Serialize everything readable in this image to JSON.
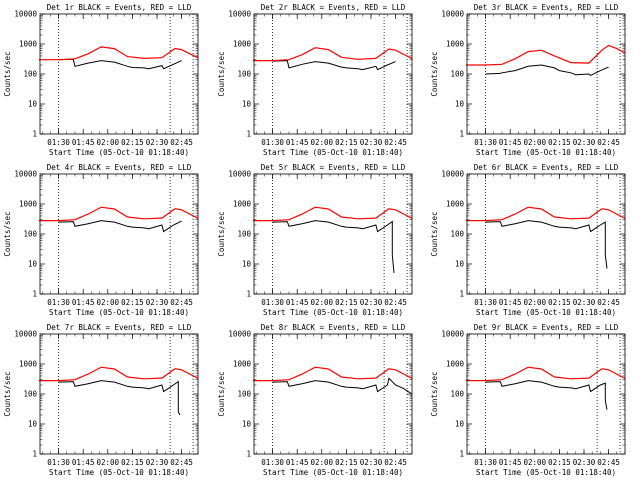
{
  "chart_data": [
    {
      "type": "line",
      "title": "Det 1r BLACK = Events, RED = LLD",
      "xlabel": "Start Time (05-Oct-10 01:18:40)",
      "ylabel": "Counts/sec",
      "log_y": true,
      "ylim": [
        1,
        10000
      ],
      "xlim": [
        "01:18:40",
        "02:55:00"
      ],
      "x_tick_labels": [
        "01:30",
        "01:45",
        "02:00",
        "02:15",
        "02:30",
        "02:45"
      ],
      "y_tick_labels": [
        "1",
        "10",
        "100",
        "1000",
        "10000"
      ],
      "vlines": [
        "01:30",
        "02:38",
        "02:52"
      ],
      "series": [
        {
          "color": "#000000",
          "x": [
            "01:30",
            "01:39",
            "01:40",
            "01:48",
            "01:56",
            "02:04",
            "02:12",
            "02:15",
            "02:22",
            "02:25",
            "02:33",
            "02:34",
            "02:40",
            "02:45"
          ],
          "y": [
            300,
            310,
            180,
            230,
            280,
            250,
            180,
            165,
            160,
            150,
            190,
            150,
            210,
            280
          ]
        },
        {
          "color": "#ff0000",
          "x": [
            "01:18",
            "01:30",
            "01:40",
            "01:48",
            "01:56",
            "02:04",
            "02:12",
            "02:22",
            "02:33",
            "02:41",
            "02:45",
            "02:50",
            "02:55"
          ],
          "y": [
            300,
            300,
            320,
            470,
            800,
            700,
            380,
            330,
            350,
            710,
            650,
            470,
            350
          ]
        }
      ]
    },
    {
      "type": "line",
      "title": "Det 2r BLACK = Events, RED = LLD",
      "xlabel": "Start Time (05-Oct-10 01:18:40)",
      "ylabel": "Counts/sec",
      "log_y": true,
      "ylim": [
        1,
        10000
      ],
      "xlim": [
        "01:18:40",
        "02:55:00"
      ],
      "x_tick_labels": [
        "01:30",
        "01:45",
        "02:00",
        "02:15",
        "02:30",
        "02:45"
      ],
      "y_tick_labels": [
        "1",
        "10",
        "100",
        "1000",
        "10000"
      ],
      "vlines": [
        "01:30",
        "02:38",
        "02:52"
      ],
      "series": [
        {
          "color": "#000000",
          "x": [
            "01:30",
            "01:39",
            "01:40",
            "01:48",
            "01:56",
            "02:04",
            "02:12",
            "02:15",
            "02:22",
            "02:25",
            "02:33",
            "02:34",
            "02:40",
            "02:45"
          ],
          "y": [
            270,
            280,
            160,
            210,
            260,
            230,
            170,
            160,
            150,
            140,
            180,
            140,
            200,
            260
          ]
        },
        {
          "color": "#ff0000",
          "x": [
            "01:18",
            "01:30",
            "01:40",
            "01:48",
            "01:56",
            "02:04",
            "02:12",
            "02:22",
            "02:33",
            "02:41",
            "02:45",
            "02:50",
            "02:55"
          ],
          "y": [
            280,
            280,
            300,
            440,
            750,
            650,
            360,
            310,
            330,
            680,
            620,
            450,
            330
          ]
        }
      ]
    },
    {
      "type": "line",
      "title": "Det 3r BLACK = Events, RED = LLD",
      "xlabel": "Start Time (05-Oct-10 01:18:40)",
      "ylabel": "Counts/sec",
      "log_y": true,
      "ylim": [
        1,
        10000
      ],
      "xlim": [
        "01:18:40",
        "02:55:00"
      ],
      "x_tick_labels": [
        "01:30",
        "01:45",
        "02:00",
        "02:15",
        "02:30",
        "02:45"
      ],
      "y_tick_labels": [
        "1",
        "10",
        "100",
        "1000",
        "10000"
      ],
      "vlines": [
        "01:30",
        "02:38",
        "02:52"
      ],
      "series": [
        {
          "color": "#000000",
          "x": [
            "01:30",
            "01:39",
            "01:40",
            "01:48",
            "01:56",
            "02:04",
            "02:12",
            "02:15",
            "02:22",
            "02:25",
            "02:33",
            "02:34",
            "02:40",
            "02:45"
          ],
          "y": [
            100,
            105,
            110,
            130,
            180,
            200,
            160,
            130,
            110,
            95,
            100,
            90,
            130,
            170
          ]
        },
        {
          "color": "#ff0000",
          "x": [
            "01:18",
            "01:30",
            "01:40",
            "01:48",
            "01:56",
            "02:04",
            "02:12",
            "02:22",
            "02:33",
            "02:41",
            "02:45",
            "02:50",
            "02:55"
          ],
          "y": [
            200,
            200,
            210,
            320,
            560,
            620,
            400,
            240,
            230,
            620,
            900,
            700,
            500
          ]
        }
      ]
    },
    {
      "type": "line",
      "title": "Det 4r BLACK = Events, RED = LLD",
      "xlabel": "Start Time (05-Oct-10 01:18:40)",
      "ylabel": "Counts/sec",
      "log_y": true,
      "ylim": [
        1,
        10000
      ],
      "xlim": [
        "01:18:40",
        "02:55:00"
      ],
      "x_tick_labels": [
        "01:30",
        "01:45",
        "02:00",
        "02:15",
        "02:30",
        "02:45"
      ],
      "y_tick_labels": [
        "1",
        "10",
        "100",
        "1000",
        "10000"
      ],
      "vlines": [
        "01:30",
        "02:38",
        "02:52"
      ],
      "series": [
        {
          "color": "#000000",
          "x": [
            "01:30",
            "01:39",
            "01:40",
            "01:48",
            "01:56",
            "02:04",
            "02:12",
            "02:15",
            "02:22",
            "02:25",
            "02:33",
            "02:34",
            "02:40",
            "02:45"
          ],
          "y": [
            250,
            260,
            180,
            220,
            280,
            250,
            180,
            170,
            160,
            150,
            200,
            120,
            200,
            270
          ]
        },
        {
          "color": "#ff0000",
          "x": [
            "01:18",
            "01:30",
            "01:40",
            "01:48",
            "01:56",
            "02:04",
            "02:12",
            "02:22",
            "02:33",
            "02:41",
            "02:45",
            "02:50",
            "02:55"
          ],
          "y": [
            280,
            280,
            300,
            460,
            780,
            680,
            370,
            320,
            340,
            690,
            640,
            460,
            330
          ]
        }
      ]
    },
    {
      "type": "line",
      "title": "Det 5r BLACK = Events, RED = LLD",
      "xlabel": "Start Time (05-Oct-10 01:18:40)",
      "ylabel": "Counts/sec",
      "log_y": true,
      "ylim": [
        1,
        10000
      ],
      "xlim": [
        "01:18:40",
        "02:55:00"
      ],
      "x_tick_labels": [
        "01:30",
        "01:45",
        "02:00",
        "02:15",
        "02:30",
        "02:45"
      ],
      "y_tick_labels": [
        "1",
        "10",
        "100",
        "1000",
        "10000"
      ],
      "vlines": [
        "01:30",
        "02:38",
        "02:52"
      ],
      "series": [
        {
          "color": "#000000",
          "x": [
            "01:30",
            "01:39",
            "01:40",
            "01:48",
            "01:56",
            "02:04",
            "02:12",
            "02:15",
            "02:22",
            "02:25",
            "02:33",
            "02:34",
            "02:40",
            "02:43",
            "02:43",
            "02:44"
          ],
          "y": [
            250,
            260,
            180,
            220,
            280,
            250,
            180,
            170,
            160,
            150,
            200,
            120,
            200,
            260,
            20,
            5
          ]
        },
        {
          "color": "#ff0000",
          "x": [
            "01:18",
            "01:30",
            "01:40",
            "01:48",
            "01:56",
            "02:04",
            "02:12",
            "02:22",
            "02:33",
            "02:41",
            "02:45",
            "02:50",
            "02:55"
          ],
          "y": [
            280,
            280,
            300,
            460,
            780,
            680,
            370,
            320,
            340,
            690,
            640,
            460,
            330
          ]
        }
      ]
    },
    {
      "type": "line",
      "title": "Det 6r BLACK = Events, RED = LLD",
      "xlabel": "Start Time (05-Oct-10 01:18:40)",
      "ylabel": "Counts/sec",
      "log_y": true,
      "ylim": [
        1,
        10000
      ],
      "xlim": [
        "01:18:40",
        "02:55:00"
      ],
      "x_tick_labels": [
        "01:30",
        "01:45",
        "02:00",
        "02:15",
        "02:30",
        "02:45"
      ],
      "y_tick_labels": [
        "1",
        "10",
        "100",
        "1000",
        "10000"
      ],
      "vlines": [
        "01:30",
        "02:38",
        "02:52"
      ],
      "series": [
        {
          "color": "#000000",
          "x": [
            "01:30",
            "01:39",
            "01:40",
            "01:48",
            "01:56",
            "02:04",
            "02:12",
            "02:15",
            "02:22",
            "02:25",
            "02:33",
            "02:34",
            "02:40",
            "02:43",
            "02:43",
            "02:44"
          ],
          "y": [
            250,
            260,
            180,
            220,
            280,
            250,
            180,
            170,
            160,
            150,
            200,
            120,
            200,
            250,
            20,
            7
          ]
        },
        {
          "color": "#ff0000",
          "x": [
            "01:18",
            "01:30",
            "01:40",
            "01:48",
            "01:56",
            "02:04",
            "02:12",
            "02:22",
            "02:33",
            "02:41",
            "02:45",
            "02:50",
            "02:55"
          ],
          "y": [
            280,
            280,
            300,
            460,
            780,
            680,
            370,
            320,
            340,
            690,
            640,
            460,
            330
          ]
        }
      ]
    },
    {
      "type": "line",
      "title": "Det 7r BLACK = Events, RED = LLD",
      "xlabel": "Start Time (05-Oct-10 01:18:40)",
      "ylabel": "Counts/sec",
      "log_y": true,
      "ylim": [
        1,
        10000
      ],
      "xlim": [
        "01:18:40",
        "02:55:00"
      ],
      "x_tick_labels": [
        "01:30",
        "01:45",
        "02:00",
        "02:15",
        "02:30",
        "02:45"
      ],
      "y_tick_labels": [
        "1",
        "10",
        "100",
        "1000",
        "10000"
      ],
      "vlines": [
        "01:30",
        "02:38",
        "02:52"
      ],
      "series": [
        {
          "color": "#000000",
          "x": [
            "01:30",
            "01:39",
            "01:40",
            "01:48",
            "01:56",
            "02:04",
            "02:12",
            "02:15",
            "02:22",
            "02:25",
            "02:33",
            "02:34",
            "02:40",
            "02:43",
            "02:43",
            "02:44"
          ],
          "y": [
            250,
            260,
            180,
            220,
            280,
            250,
            180,
            170,
            160,
            150,
            200,
            120,
            200,
            260,
            25,
            20
          ]
        },
        {
          "color": "#ff0000",
          "x": [
            "01:18",
            "01:30",
            "01:40",
            "01:48",
            "01:56",
            "02:04",
            "02:12",
            "02:22",
            "02:33",
            "02:41",
            "02:45",
            "02:50",
            "02:55"
          ],
          "y": [
            280,
            280,
            300,
            460,
            780,
            680,
            370,
            320,
            340,
            690,
            640,
            460,
            330
          ]
        }
      ]
    },
    {
      "type": "line",
      "title": "Det 8r BLACK = Events, RED = LLD",
      "xlabel": "Start Time (05-Oct-10 01:18:40)",
      "ylabel": "Counts/sec",
      "log_y": true,
      "ylim": [
        1,
        10000
      ],
      "xlim": [
        "01:18:40",
        "02:55:00"
      ],
      "x_tick_labels": [
        "01:30",
        "01:45",
        "02:00",
        "02:15",
        "02:30",
        "02:45"
      ],
      "y_tick_labels": [
        "1",
        "10",
        "100",
        "1000",
        "10000"
      ],
      "vlines": [
        "01:30",
        "02:38",
        "02:52"
      ],
      "series": [
        {
          "color": "#000000",
          "x": [
            "01:30",
            "01:39",
            "01:40",
            "01:48",
            "01:56",
            "02:04",
            "02:12",
            "02:15",
            "02:22",
            "02:25",
            "02:33",
            "02:34",
            "02:40",
            "02:41",
            "02:45",
            "02:50",
            "02:55"
          ],
          "y": [
            250,
            260,
            180,
            220,
            280,
            250,
            180,
            170,
            160,
            150,
            200,
            120,
            200,
            330,
            200,
            150,
            100
          ]
        },
        {
          "color": "#ff0000",
          "x": [
            "01:18",
            "01:30",
            "01:40",
            "01:48",
            "01:56",
            "02:04",
            "02:12",
            "02:22",
            "02:33",
            "02:41",
            "02:45",
            "02:50",
            "02:55"
          ],
          "y": [
            280,
            280,
            300,
            460,
            780,
            680,
            370,
            320,
            340,
            690,
            640,
            460,
            330
          ]
        }
      ]
    },
    {
      "type": "line",
      "title": "Det 9r BLACK = Events, RED = LLD",
      "xlabel": "Start Time (05-Oct-10 01:18:40)",
      "ylabel": "Counts/sec",
      "log_y": true,
      "ylim": [
        1,
        10000
      ],
      "xlim": [
        "01:18:40",
        "02:55:00"
      ],
      "x_tick_labels": [
        "01:30",
        "01:45",
        "02:00",
        "02:15",
        "02:30",
        "02:45"
      ],
      "y_tick_labels": [
        "1",
        "10",
        "100",
        "1000",
        "10000"
      ],
      "vlines": [
        "01:30",
        "02:38",
        "02:52"
      ],
      "series": [
        {
          "color": "#000000",
          "x": [
            "01:30",
            "01:39",
            "01:40",
            "01:48",
            "01:56",
            "02:04",
            "02:12",
            "02:15",
            "02:22",
            "02:25",
            "02:33",
            "02:34",
            "02:40",
            "02:43",
            "02:43",
            "02:44"
          ],
          "y": [
            250,
            260,
            180,
            220,
            280,
            250,
            180,
            170,
            160,
            150,
            200,
            120,
            200,
            230,
            60,
            30
          ]
        },
        {
          "color": "#ff0000",
          "x": [
            "01:18",
            "01:30",
            "01:40",
            "01:48",
            "01:56",
            "02:04",
            "02:12",
            "02:22",
            "02:33",
            "02:41",
            "02:45",
            "02:50",
            "02:55"
          ],
          "y": [
            280,
            280,
            300,
            460,
            780,
            680,
            370,
            320,
            340,
            690,
            640,
            460,
            330
          ]
        }
      ]
    }
  ]
}
